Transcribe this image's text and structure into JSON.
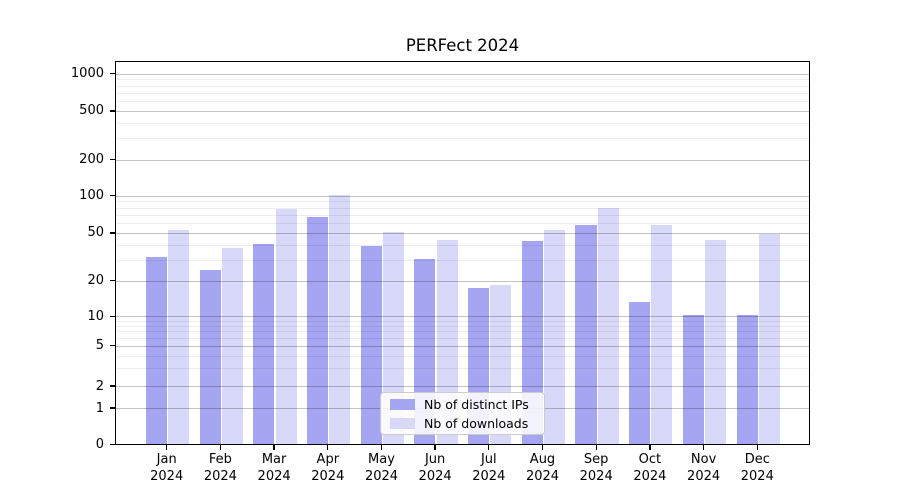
{
  "title": "PERFect 2024",
  "chart_data": {
    "type": "bar",
    "title": "PERFect 2024",
    "categories": [
      "Jan 2024",
      "Feb 2024",
      "Mar 2024",
      "Apr 2024",
      "May 2024",
      "Jun 2024",
      "Jul 2024",
      "Aug 2024",
      "Sep 2024",
      "Oct 2024",
      "Nov 2024",
      "Dec 2024"
    ],
    "series": [
      {
        "name": "Nb of distinct IPs",
        "color": "#a5a5f2",
        "values": [
          31,
          24,
          40,
          66,
          38,
          30,
          17,
          42,
          57,
          13,
          10,
          10
        ]
      },
      {
        "name": "Nb of downloads",
        "color": "#d8d8f8",
        "values": [
          52,
          37,
          77,
          100,
          50,
          43,
          18,
          52,
          78,
          57,
          43,
          48
        ]
      }
    ],
    "xlabel": "",
    "ylabel": "",
    "yscale": "log-like (symlog with linear segment near 0)",
    "ylim": [
      0,
      1280
    ],
    "ytick_values": [
      0,
      1,
      2,
      5,
      10,
      20,
      50,
      100,
      200,
      500,
      1000
    ],
    "ytick_labels": [
      "0",
      "1",
      "2",
      "5",
      "10",
      "20",
      "50",
      "100",
      "200",
      "500",
      "1000"
    ],
    "minor_gridline_values": [
      3,
      4,
      6,
      7,
      8,
      9,
      30,
      40,
      60,
      70,
      80,
      90,
      300,
      400,
      600,
      700,
      800,
      900
    ],
    "grid": "horizontal, major and minor, drawn above bars",
    "legend_position": "lower center (inside axes)",
    "bar_group": "two bars per month, dark left / light right"
  },
  "legend": {
    "items": [
      {
        "label": "Nb of distinct IPs"
      },
      {
        "label": "Nb of downloads"
      }
    ]
  }
}
